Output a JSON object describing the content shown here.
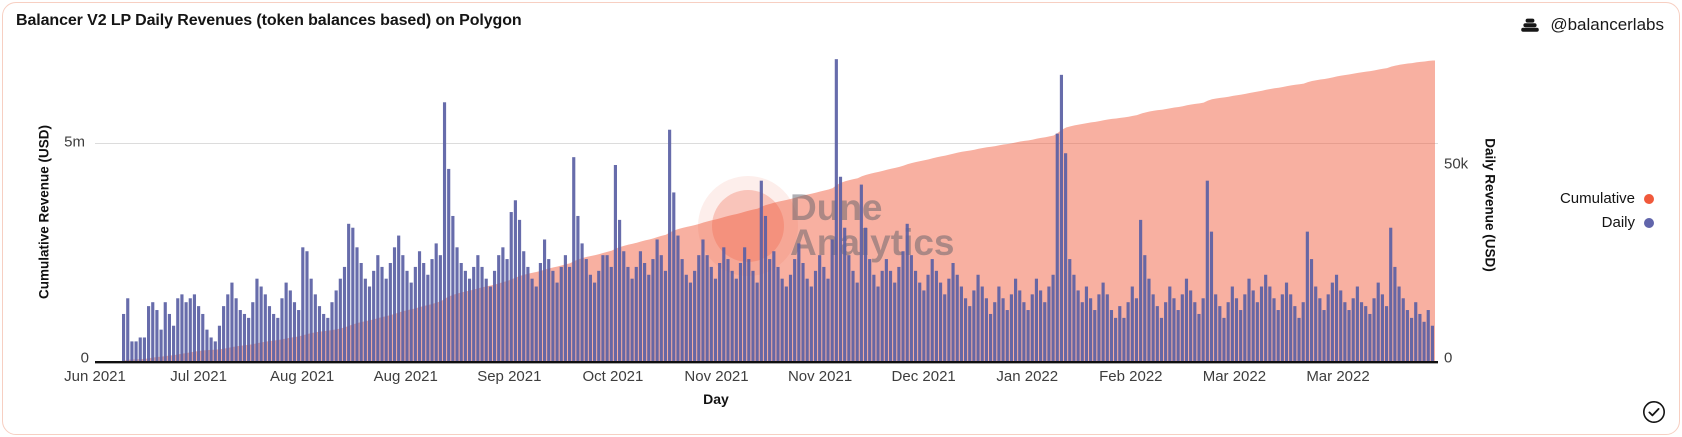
{
  "card": {
    "title": "Balancer V2 LP Daily Revenues (token balances based) on Polygon",
    "attribution": "@balancerlabs",
    "watermark_line1": "Dune",
    "watermark_line2": "Analytics"
  },
  "legend": [
    {
      "label": "Cumulative",
      "color": "#F0593B"
    },
    {
      "label": "Daily",
      "color": "#6165AB"
    }
  ],
  "chart_data": {
    "type": "bar+area combo, dual axis",
    "title": "Balancer V2 LP Daily Revenues (token balances based) on Polygon",
    "xlabel": "Day",
    "x_start_date": "2021-06-07",
    "x_interval": "day",
    "x_tick_labels": [
      "Jun 2021",
      "Jul 2021",
      "Aug 2021",
      "Aug 2021",
      "Sep 2021",
      "Oct 2021",
      "Nov 2021",
      "Nov 2021",
      "Dec 2021",
      "Jan 2022",
      "Feb 2022",
      "Mar 2022",
      "Mar 2022"
    ],
    "y_left": {
      "label": "Cumulative Revenue (USD)",
      "tick_labels": [
        "5m",
        "0"
      ],
      "range_musd": [
        0,
        6.95
      ]
    },
    "y_right": {
      "label": "Daily Revenue (USD)",
      "tick_labels": [
        "50k",
        "0"
      ],
      "range_kusd": [
        0,
        77.5
      ]
    },
    "grid": "single horizontal gridline at left-axis 5m",
    "legend_position": "right",
    "series": [
      {
        "name": "Daily",
        "type": "bar",
        "axis": "right",
        "color": "#5A5FA4",
        "units": "thousand USD per day",
        "values_kusd": [
          12,
          16,
          5,
          5,
          6,
          6,
          14,
          15,
          13,
          8,
          15,
          12,
          9,
          16,
          17,
          15,
          16,
          17,
          14,
          12,
          8,
          6,
          5,
          9,
          14,
          17,
          20,
          16,
          13,
          12,
          11,
          15,
          21,
          19,
          17,
          14,
          12,
          11,
          16,
          20,
          18,
          15,
          13,
          29,
          28,
          21,
          17,
          14,
          12,
          11,
          15,
          18,
          21,
          24,
          35,
          34,
          29,
          25,
          21,
          19,
          23,
          27,
          24,
          21,
          25,
          29,
          32,
          27,
          23,
          20,
          24,
          28,
          25,
          22,
          26,
          30,
          27,
          66,
          49,
          37,
          29,
          25,
          23,
          21,
          24,
          27,
          24,
          21,
          19,
          23,
          27,
          29,
          26,
          38,
          41,
          36,
          28,
          24,
          21,
          19,
          25,
          31,
          26,
          23,
          20,
          24,
          27,
          24,
          52,
          37,
          30,
          26,
          22,
          20,
          23,
          27,
          27,
          24,
          50,
          36,
          28,
          24,
          21,
          24,
          28,
          25,
          22,
          26,
          31,
          27,
          23,
          59,
          43,
          32,
          26,
          22,
          20,
          23,
          27,
          31,
          27,
          24,
          21,
          25,
          29,
          26,
          23,
          21,
          25,
          29,
          26,
          23,
          20,
          46,
          37,
          26,
          28,
          24,
          21,
          19,
          22,
          26,
          30,
          25,
          21,
          19,
          23,
          27,
          24,
          21,
          31,
          77,
          47,
          34,
          27,
          23,
          20,
          45,
          34,
          26,
          22,
          19,
          23,
          26,
          23,
          20,
          24,
          28,
          35,
          27,
          23,
          20,
          18,
          22,
          26,
          23,
          20,
          17,
          21,
          25,
          22,
          19,
          16,
          14,
          18,
          22,
          19,
          16,
          12,
          15,
          19,
          16,
          13,
          17,
          21,
          18,
          15,
          13,
          17,
          21,
          18,
          15,
          19,
          22,
          58,
          73,
          53,
          26,
          22,
          18,
          15,
          19,
          16,
          13,
          17,
          20,
          17,
          13,
          11,
          14,
          11,
          15,
          19,
          16,
          36,
          27,
          21,
          17,
          14,
          11,
          15,
          19,
          16,
          13,
          17,
          21,
          18,
          15,
          12,
          16,
          46,
          33,
          17,
          14,
          11,
          15,
          19,
          16,
          13,
          17,
          21,
          18,
          15,
          19,
          22,
          19,
          16,
          13,
          17,
          20,
          17,
          14,
          11,
          15,
          33,
          26,
          19,
          16,
          13,
          17,
          20,
          22,
          18,
          15,
          13,
          16,
          19,
          15,
          14,
          12,
          16,
          20,
          17,
          14,
          34,
          24,
          19,
          16,
          13,
          11,
          15,
          12,
          10,
          13,
          9
        ]
      },
      {
        "name": "Cumulative",
        "type": "area",
        "axis": "left",
        "color": "#F0593B",
        "fill_opacity": 0.48,
        "definition": "running sum of Daily series",
        "final_value_musd": 6.91
      }
    ]
  }
}
